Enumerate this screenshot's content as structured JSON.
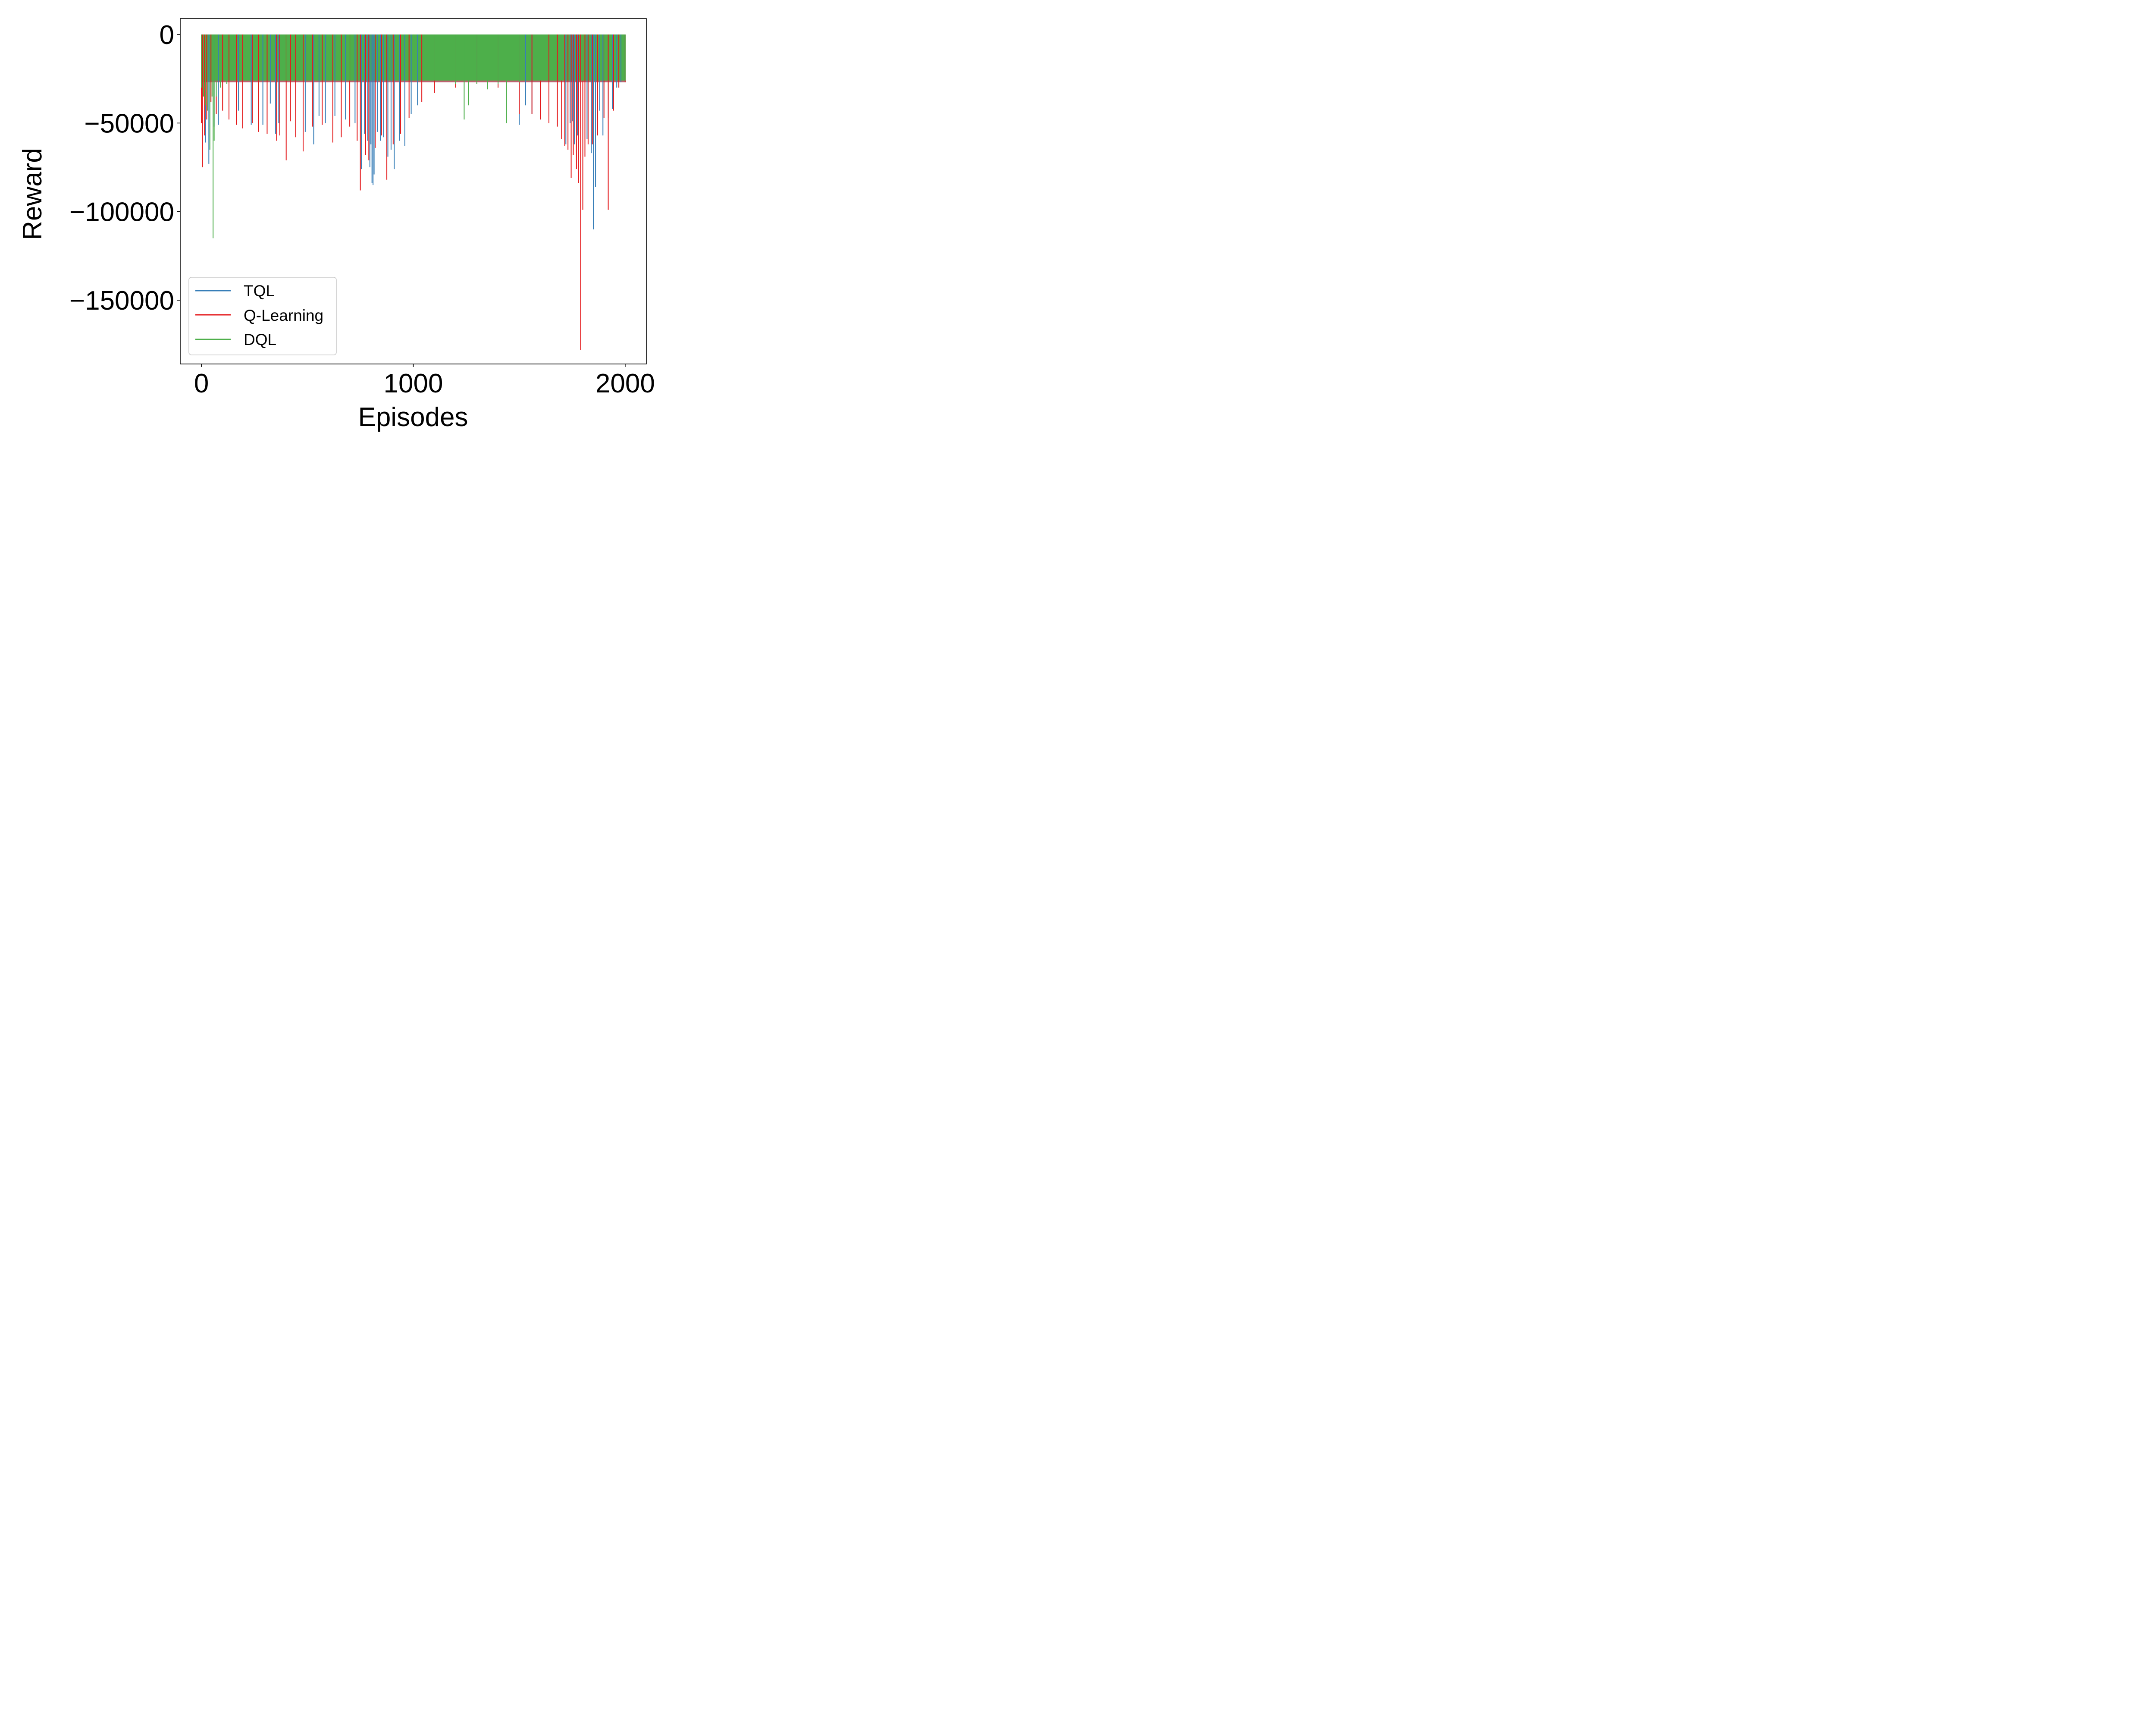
{
  "chart_data": {
    "type": "line",
    "title": "",
    "xlabel": "Episodes",
    "ylabel": "Reward",
    "xlim": [
      -100,
      2100
    ],
    "ylim": [
      -186000,
      9000
    ],
    "x_ticks": [
      0,
      1000,
      2000
    ],
    "x_tick_labels": [
      "0",
      "1000",
      "2000"
    ],
    "y_ticks": [
      0,
      -50000,
      -100000,
      -150000
    ],
    "y_tick_labels": [
      "0",
      "−50000",
      "−100000",
      "−150000"
    ],
    "grid": false,
    "legend_position": "lower-left",
    "series": [
      {
        "name": "TQL",
        "color": "#377eb8",
        "x": [
          0,
          20,
          35,
          60,
          80,
          130,
          175,
          235,
          290,
          325,
          350,
          365,
          420,
          445,
          490,
          530,
          555,
          585,
          630,
          680,
          725,
          755,
          770,
          785,
          795,
          800,
          805,
          810,
          815,
          830,
          845,
          860,
          880,
          895,
          910,
          935,
          960,
          990,
          1020,
          1100,
          1200,
          1300,
          1400,
          1500,
          1530,
          1560,
          1600,
          1640,
          1700,
          1720,
          1740,
          1750,
          1760,
          1775,
          1790,
          1820,
          1840,
          1850,
          1860,
          1880,
          1895,
          1920,
          1940,
          1960,
          1980,
          2000
        ],
        "values": [
          -27000,
          -61000,
          -73000,
          -52000,
          -51000,
          -41000,
          -43000,
          -51000,
          -51000,
          -39000,
          -56000,
          -50000,
          -47000,
          -43000,
          -55000,
          -62000,
          -46000,
          -50000,
          -46000,
          -48000,
          -50000,
          -76000,
          -56000,
          -60000,
          -75000,
          -62000,
          -84000,
          -85000,
          -79000,
          -55000,
          -60000,
          -58000,
          -69000,
          -65000,
          -76000,
          -60000,
          -63000,
          -45000,
          -40000,
          -30000,
          -27000,
          -28000,
          -30000,
          -51000,
          -40000,
          -45000,
          -48000,
          -46000,
          -55000,
          -62000,
          -50000,
          -49000,
          -62000,
          -57000,
          -53000,
          -59000,
          -67000,
          -110000,
          -86000,
          -43000,
          -57000,
          -47000,
          -42000,
          -30000,
          -27000,
          -27000
        ]
      },
      {
        "name": "Q-Learning",
        "color": "#e41a1c",
        "x": [
          0,
          5,
          15,
          25,
          45,
          70,
          100,
          130,
          165,
          195,
          240,
          270,
          310,
          355,
          370,
          400,
          420,
          445,
          480,
          525,
          570,
          620,
          660,
          700,
          735,
          750,
          775,
          790,
          820,
          850,
          875,
          905,
          940,
          980,
          1040,
          1100,
          1200,
          1300,
          1400,
          1500,
          1560,
          1600,
          1640,
          1680,
          1700,
          1715,
          1730,
          1745,
          1755,
          1770,
          1780,
          1790,
          1800,
          1810,
          1825,
          1845,
          1870,
          1900,
          1920,
          1945,
          1970,
          2000
        ],
        "values": [
          -50000,
          -75000,
          -57000,
          -48000,
          -38000,
          -45000,
          -43000,
          -48000,
          -51000,
          -53000,
          -50000,
          -55000,
          -56000,
          -60000,
          -57000,
          -71000,
          -49000,
          -58000,
          -66000,
          -52000,
          -51000,
          -61000,
          -58000,
          -52000,
          -60000,
          -88000,
          -68000,
          -71000,
          -64000,
          -57000,
          -82000,
          -62000,
          -56000,
          -47000,
          -38000,
          -33000,
          -30000,
          -28000,
          -30000,
          -45000,
          -45000,
          -48000,
          -50000,
          -52000,
          -59000,
          -63000,
          -65000,
          -81000,
          -68000,
          -76000,
          -84000,
          -178000,
          -99000,
          -69000,
          -62000,
          -62000,
          -57000,
          -47000,
          -99000,
          -43000,
          -30000,
          -27000
        ]
      },
      {
        "name": "DQL",
        "color": "#4daf4a",
        "x": [
          0,
          10,
          20,
          30,
          40,
          50,
          55,
          60,
          70,
          90,
          120,
          200,
          300,
          400,
          500,
          600,
          700,
          800,
          900,
          1000,
          1100,
          1200,
          1240,
          1260,
          1300,
          1350,
          1400,
          1440,
          1500,
          1600,
          1700,
          1800,
          1900,
          2000
        ],
        "values": [
          -30000,
          -35000,
          -40000,
          -43000,
          -65000,
          -35000,
          -115000,
          -60000,
          -35000,
          -30000,
          -28000,
          -26000,
          -26000,
          -26000,
          -26000,
          -26000,
          -26000,
          -26000,
          -26000,
          -26000,
          -26000,
          -28000,
          -48000,
          -40000,
          -28000,
          -31000,
          -28000,
          -50000,
          -27000,
          -26000,
          -26000,
          -26000,
          -26000,
          -26000
        ]
      }
    ]
  }
}
